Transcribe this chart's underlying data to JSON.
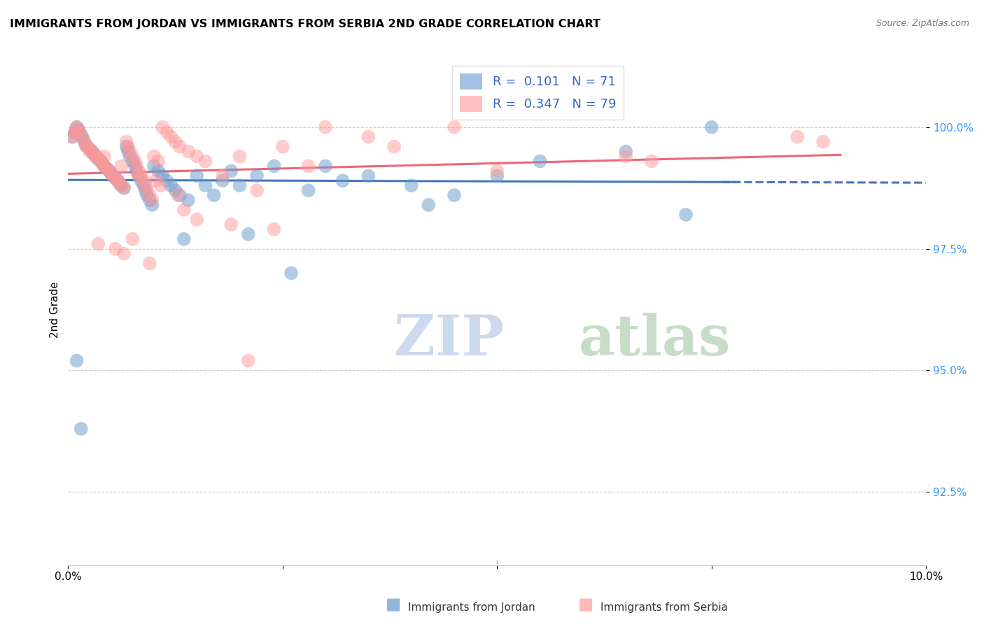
{
  "title": "IMMIGRANTS FROM JORDAN VS IMMIGRANTS FROM SERBIA 2ND GRADE CORRELATION CHART",
  "source": "Source: ZipAtlas.com",
  "ylabel": "2nd Grade",
  "ytick_values": [
    92.5,
    95.0,
    97.5,
    100.0
  ],
  "xlim": [
    0.0,
    10.0
  ],
  "ylim": [
    91.0,
    101.5
  ],
  "legend_jordan_R": 0.101,
  "legend_jordan_N": 71,
  "legend_serbia_R": 0.347,
  "legend_serbia_N": 79,
  "jordan_color": "#6699cc",
  "serbia_color": "#ff9999",
  "jordan_line_color": "#4477bb",
  "serbia_line_color": "#ee6677",
  "watermark_zip": "ZIP",
  "watermark_atlas": "atlas",
  "watermark_color_zip": "#ccd9ee",
  "watermark_color_atlas": "#c8ddc8",
  "jordan_scatter_x": [
    0.05,
    0.08,
    0.1,
    0.12,
    0.15,
    0.18,
    0.2,
    0.22,
    0.25,
    0.28,
    0.3,
    0.32,
    0.35,
    0.38,
    0.4,
    0.42,
    0.45,
    0.48,
    0.5,
    0.52,
    0.55,
    0.58,
    0.6,
    0.62,
    0.65,
    0.68,
    0.7,
    0.72,
    0.75,
    0.78,
    0.8,
    0.82,
    0.85,
    0.88,
    0.9,
    0.92,
    0.95,
    0.98,
    1.0,
    1.05,
    1.1,
    1.15,
    1.2,
    1.25,
    1.3,
    1.4,
    1.5,
    1.6,
    1.7,
    1.8,
    1.9,
    2.0,
    2.2,
    2.4,
    2.6,
    3.0,
    3.5,
    4.0,
    4.5,
    5.0,
    5.5,
    6.5,
    7.2,
    7.5,
    1.35,
    2.1,
    2.8,
    3.2,
    4.2,
    0.1,
    0.15
  ],
  "jordan_scatter_y": [
    99.8,
    99.9,
    100.0,
    99.95,
    99.85,
    99.75,
    99.65,
    99.6,
    99.55,
    99.5,
    99.45,
    99.4,
    99.35,
    99.3,
    99.25,
    99.2,
    99.15,
    99.1,
    99.05,
    99.0,
    98.95,
    98.9,
    98.85,
    98.8,
    98.75,
    99.6,
    99.5,
    99.4,
    99.3,
    99.2,
    99.1,
    99.0,
    98.9,
    98.8,
    98.7,
    98.6,
    98.5,
    98.4,
    99.2,
    99.1,
    99.0,
    98.9,
    98.8,
    98.7,
    98.6,
    98.5,
    99.0,
    98.8,
    98.6,
    98.9,
    99.1,
    98.8,
    99.0,
    99.2,
    97.0,
    99.2,
    99.0,
    98.8,
    98.6,
    99.0,
    99.3,
    99.5,
    98.2,
    100.0,
    97.7,
    97.8,
    98.7,
    98.9,
    98.4,
    95.2,
    93.8
  ],
  "serbia_scatter_x": [
    0.05,
    0.08,
    0.1,
    0.12,
    0.15,
    0.18,
    0.2,
    0.22,
    0.25,
    0.28,
    0.3,
    0.32,
    0.35,
    0.38,
    0.4,
    0.42,
    0.45,
    0.48,
    0.5,
    0.52,
    0.55,
    0.58,
    0.6,
    0.62,
    0.65,
    0.68,
    0.7,
    0.72,
    0.75,
    0.78,
    0.8,
    0.82,
    0.85,
    0.88,
    0.9,
    0.92,
    0.95,
    0.98,
    1.0,
    1.05,
    1.1,
    1.15,
    1.2,
    1.25,
    1.3,
    1.4,
    1.5,
    1.6,
    1.8,
    2.0,
    2.2,
    2.5,
    3.0,
    3.5,
    4.5,
    6.8,
    8.5,
    2.8,
    3.8,
    1.35,
    0.35,
    0.55,
    0.75,
    1.02,
    1.28,
    1.9,
    2.4,
    5.0,
    6.5,
    8.8,
    0.42,
    0.62,
    0.82,
    1.08,
    0.25,
    0.65,
    0.95,
    1.5,
    2.1
  ],
  "serbia_scatter_y": [
    99.8,
    99.9,
    100.0,
    99.95,
    99.85,
    99.75,
    99.65,
    99.6,
    99.55,
    99.5,
    99.45,
    99.4,
    99.35,
    99.3,
    99.25,
    99.2,
    99.15,
    99.1,
    99.05,
    99.0,
    98.95,
    98.9,
    98.85,
    98.8,
    98.75,
    99.7,
    99.6,
    99.5,
    99.4,
    99.3,
    99.2,
    99.1,
    99.0,
    98.9,
    98.8,
    98.7,
    98.6,
    98.5,
    99.4,
    99.3,
    100.0,
    99.9,
    99.8,
    99.7,
    99.6,
    99.5,
    99.4,
    99.3,
    99.0,
    99.4,
    98.7,
    99.6,
    100.0,
    99.8,
    100.0,
    99.3,
    99.8,
    99.2,
    99.6,
    98.3,
    97.6,
    97.5,
    97.7,
    98.9,
    98.6,
    98.0,
    97.9,
    99.1,
    99.4,
    99.7,
    99.4,
    99.2,
    99.0,
    98.8,
    99.5,
    97.4,
    97.2,
    98.1,
    95.2
  ]
}
